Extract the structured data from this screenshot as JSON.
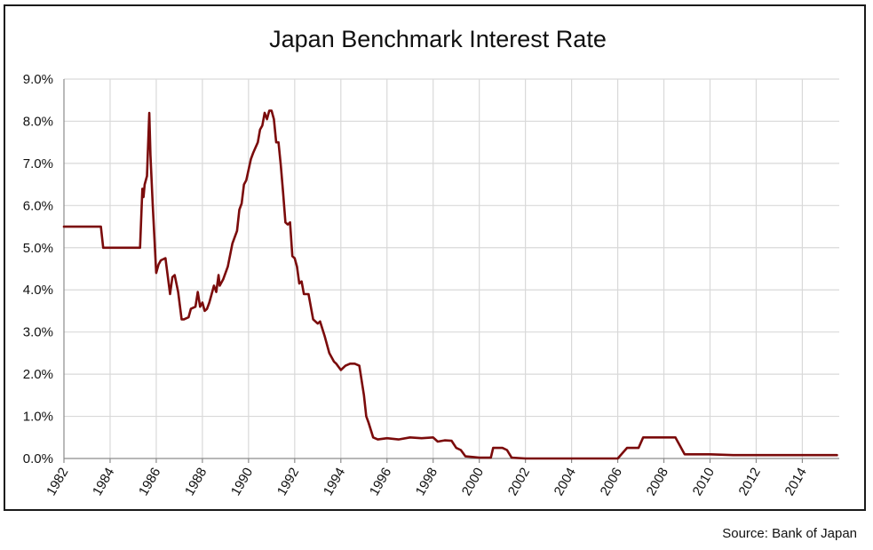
{
  "chart_data": {
    "type": "line",
    "title": "Japan Benchmark Interest Rate",
    "xlabel": "",
    "ylabel": "",
    "ylim": [
      0,
      9
    ],
    "xlim": [
      1982,
      2015.6
    ],
    "y_ticks": [
      "0.0%",
      "1.0%",
      "2.0%",
      "3.0%",
      "4.0%",
      "5.0%",
      "6.0%",
      "7.0%",
      "8.0%",
      "9.0%"
    ],
    "x_ticks": [
      "1982",
      "1984",
      "1986",
      "1988",
      "1990",
      "1992",
      "1994",
      "1996",
      "1998",
      "2000",
      "2002",
      "2004",
      "2006",
      "2008",
      "2010",
      "2012",
      "2014"
    ],
    "grid": true,
    "line_color": "#7b0b0b",
    "series": [
      {
        "x": [
          1982.0,
          1983.6,
          1983.7,
          1985.3,
          1985.4,
          1985.45,
          1985.5,
          1985.6,
          1985.7,
          1985.75,
          1985.85,
          1986.0,
          1986.1,
          1986.2,
          1986.4,
          1986.6,
          1986.7,
          1986.8,
          1986.95,
          1987.1,
          1987.2,
          1987.4,
          1987.5,
          1987.7,
          1987.8,
          1987.9,
          1988.0,
          1988.1,
          1988.2,
          1988.3,
          1988.5,
          1988.6,
          1988.7,
          1988.75,
          1988.9,
          1989.1,
          1989.3,
          1989.5,
          1989.6,
          1989.7,
          1989.8,
          1989.9,
          1990.1,
          1990.2,
          1990.4,
          1990.5,
          1990.6,
          1990.7,
          1990.8,
          1990.9,
          1991.0,
          1991.1,
          1991.2,
          1991.3,
          1991.4,
          1991.5,
          1991.6,
          1991.7,
          1991.8,
          1991.9,
          1992.0,
          1992.1,
          1992.2,
          1992.3,
          1992.4,
          1992.6,
          1992.8,
          1993.0,
          1993.1,
          1993.3,
          1993.5,
          1993.7,
          1993.8,
          1994.0,
          1994.2,
          1994.4,
          1994.6,
          1994.8,
          1995.0,
          1995.1,
          1995.2,
          1995.4,
          1995.6,
          1996.0,
          1996.5,
          1997.0,
          1997.5,
          1998.0,
          1998.2,
          1998.5,
          1998.8,
          1999.0,
          1999.2,
          1999.4,
          2000.0,
          2000.5,
          2000.6,
          2001.0,
          2001.2,
          2001.4,
          2002.0,
          2004.0,
          2006.0,
          2006.4,
          2006.5,
          2006.9,
          2007.1,
          2007.5,
          2008.0,
          2008.5,
          2008.7,
          2008.9,
          2009.5,
          2010.0,
          2011.0,
          2012.0,
          2013.0,
          2015.5
        ],
        "values": [
          5.5,
          5.5,
          5.0,
          5.0,
          6.4,
          6.2,
          6.5,
          6.7,
          8.2,
          7.2,
          6.0,
          4.4,
          4.6,
          4.7,
          4.75,
          3.9,
          4.3,
          4.35,
          3.95,
          3.3,
          3.3,
          3.35,
          3.55,
          3.6,
          3.95,
          3.6,
          3.7,
          3.5,
          3.55,
          3.7,
          4.1,
          3.95,
          4.35,
          4.1,
          4.25,
          4.55,
          5.1,
          5.4,
          5.9,
          6.05,
          6.5,
          6.6,
          7.1,
          7.25,
          7.5,
          7.8,
          7.9,
          8.2,
          8.05,
          8.25,
          8.25,
          8.05,
          7.5,
          7.5,
          6.95,
          6.3,
          5.6,
          5.55,
          5.6,
          4.8,
          4.75,
          4.55,
          4.15,
          4.2,
          3.9,
          3.9,
          3.3,
          3.2,
          3.25,
          2.9,
          2.5,
          2.3,
          2.25,
          2.1,
          2.2,
          2.25,
          2.25,
          2.2,
          1.5,
          1.0,
          0.85,
          0.5,
          0.45,
          0.48,
          0.45,
          0.5,
          0.48,
          0.5,
          0.4,
          0.43,
          0.42,
          0.25,
          0.2,
          0.05,
          0.02,
          0.02,
          0.25,
          0.25,
          0.2,
          0.02,
          0.0,
          0.0,
          0.0,
          0.25,
          0.25,
          0.25,
          0.5,
          0.5,
          0.5,
          0.5,
          0.3,
          0.1,
          0.1,
          0.1,
          0.08,
          0.08,
          0.08,
          0.08
        ]
      }
    ]
  },
  "source": "Source: Bank of Japan"
}
